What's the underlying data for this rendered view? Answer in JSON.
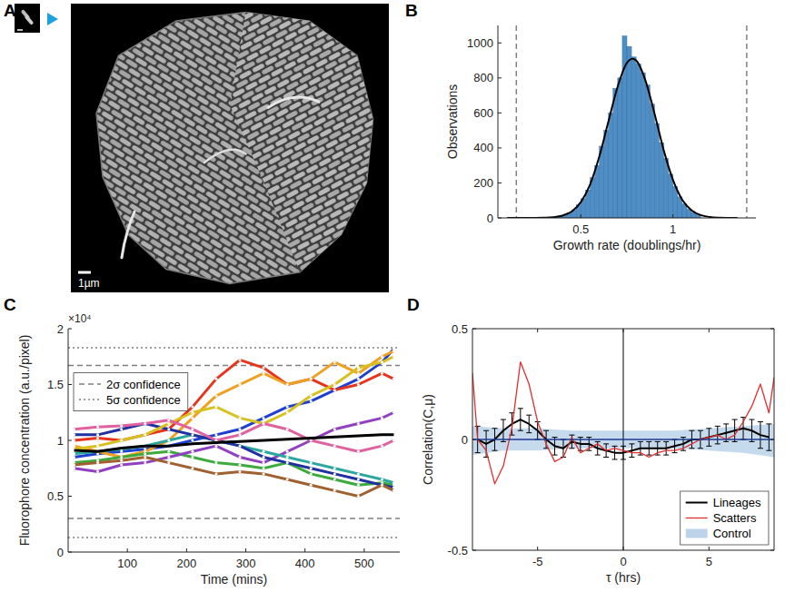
{
  "chart_data": [
    {
      "type": "image",
      "panel_label": "A",
      "scale_bar": "1µm"
    },
    {
      "type": "histogram",
      "panel_label": "B",
      "x_label": "Growth rate (doublings/hr)",
      "y_label": "Observations",
      "bins": [
        0.35,
        0.375,
        0.4,
        0.425,
        0.45,
        0.475,
        0.5,
        0.525,
        0.55,
        0.575,
        0.6,
        0.625,
        0.65,
        0.675,
        0.7,
        0.725,
        0.75,
        0.775,
        0.8,
        0.825,
        0.85,
        0.875,
        0.9,
        0.925,
        0.95,
        0.975,
        1,
        1.025,
        1.05,
        1.075,
        1.1,
        1.125,
        1.15
      ],
      "counts": [
        5,
        9,
        15,
        30,
        45,
        75,
        110,
        160,
        230,
        300,
        410,
        500,
        600,
        740,
        800,
        1040,
        980,
        920,
        880,
        830,
        760,
        650,
        540,
        430,
        340,
        250,
        180,
        120,
        80,
        50,
        30,
        18
      ],
      "color": "#4f8ec5",
      "fit": {
        "x": [
          0.1,
          0.15,
          0.2,
          0.25,
          0.3,
          0.35,
          0.4,
          0.45,
          0.5,
          0.55,
          0.6,
          0.65,
          0.7,
          0.75,
          0.8,
          0.85,
          0.9,
          0.95,
          1,
          1.05,
          1.1,
          1.15,
          1.2,
          1.25,
          1.3,
          1.35
        ],
        "values": [
          0,
          0,
          0,
          0,
          1,
          4,
          13,
          36,
          90,
          190,
          350,
          552,
          751,
          886,
          900,
          787,
          596,
          386,
          217,
          104,
          44,
          16,
          5,
          1,
          0,
          0
        ],
        "color": "#000000"
      },
      "reference_lines": {
        "x": [
          0.15,
          1.4
        ],
        "line_style": "dashed",
        "color": "#808080"
      },
      "xlim": [
        0.05,
        1.45
      ],
      "xticks": [
        0.5,
        1
      ],
      "ylim": [
        0,
        1100
      ],
      "yticks": [
        0,
        200,
        400,
        600,
        800,
        1000
      ]
    },
    {
      "type": "line",
      "panel_label": "C",
      "x_label": "Time (mins)",
      "y_label": "Fluorophore concentration (a.u./pixel)",
      "y_multiplier": "×10⁴",
      "xlim": [
        0,
        560
      ],
      "xticks": [
        100,
        200,
        300,
        400,
        500
      ],
      "ylim": [
        0,
        2
      ],
      "yticks": [
        0,
        0.5,
        1,
        1.5,
        2
      ],
      "x": [
        10,
        50,
        90,
        130,
        170,
        210,
        250,
        290,
        330,
        370,
        410,
        450,
        490,
        530,
        550
      ],
      "series": [
        {
          "color": "#1f3fd0",
          "marker": "circle",
          "values": [
            0.85,
            0.88,
            0.9,
            0.92,
            0.95,
            1.0,
            1.05,
            1.1,
            1.2,
            1.3,
            1.35,
            1.45,
            1.55,
            1.7,
            1.82
          ]
        },
        {
          "color": "#e8341c",
          "marker": "circle",
          "values": [
            1.0,
            1.02,
            1.0,
            1.05,
            1.1,
            1.3,
            1.55,
            1.72,
            1.65,
            1.5,
            1.55,
            1.45,
            1.5,
            1.6,
            1.55
          ]
        },
        {
          "color": "#f0a020",
          "marker": "circle",
          "values": [
            0.95,
            0.9,
            0.85,
            0.9,
            1.0,
            1.2,
            1.4,
            1.5,
            1.6,
            1.5,
            1.55,
            1.7,
            1.6,
            1.75,
            1.8
          ]
        },
        {
          "color": "#3caa3c",
          "marker": "circle",
          "values": [
            0.8,
            0.82,
            0.85,
            0.88,
            0.9,
            0.85,
            0.8,
            0.78,
            0.75,
            0.8,
            0.7,
            0.65,
            0.6,
            0.62,
            0.6
          ]
        },
        {
          "color": "#9040c0",
          "marker": "circle",
          "values": [
            0.75,
            0.72,
            0.78,
            0.8,
            0.85,
            0.9,
            0.95,
            0.85,
            0.8,
            0.9,
            1.0,
            1.1,
            1.15,
            1.2,
            1.25
          ]
        },
        {
          "color": "#2aa8a0",
          "marker": "circle",
          "values": [
            0.88,
            0.9,
            0.92,
            0.95,
            1.0,
            1.05,
            1.0,
            0.95,
            0.9,
            0.85,
            0.8,
            0.75,
            0.7,
            0.65,
            0.62
          ]
        },
        {
          "color": "#2030a0",
          "marker": "circle",
          "values": [
            1.05,
            1.05,
            1.1,
            1.15,
            1.1,
            1.05,
            1.0,
            0.95,
            0.85,
            0.8,
            0.75,
            0.7,
            0.65,
            0.6,
            0.58
          ]
        },
        {
          "color": "#d8c020",
          "marker": "circle",
          "values": [
            0.92,
            0.95,
            1.0,
            1.05,
            1.15,
            1.25,
            1.3,
            1.2,
            1.15,
            1.25,
            1.4,
            1.5,
            1.65,
            1.7,
            1.75
          ]
        },
        {
          "color": "#e060a0",
          "marker": "circle",
          "values": [
            1.1,
            1.12,
            1.13,
            1.15,
            1.18,
            1.1,
            1.0,
            1.05,
            1.15,
            1.1,
            1.0,
            0.95,
            0.9,
            0.95,
            1.0
          ]
        },
        {
          "color": "#a06030",
          "marker": "circle",
          "values": [
            0.78,
            0.8,
            0.82,
            0.85,
            0.8,
            0.75,
            0.7,
            0.72,
            0.7,
            0.65,
            0.6,
            0.55,
            0.5,
            0.6,
            0.55
          ]
        },
        {
          "color": "#000000",
          "values": [
            0.91,
            0.9,
            0.93,
            0.95,
            0.95,
            0.97,
            0.98,
            0.99,
            1.0,
            1.01,
            1.02,
            1.03,
            1.04,
            1.05,
            1.05
          ]
        }
      ],
      "reference_lines": [
        {
          "name": "2σ confidence",
          "values": [
            0.3,
            1.67
          ],
          "line_style": "dashed",
          "color": "#808080"
        },
        {
          "name": "5σ confidence",
          "values": [
            0.13,
            1.83
          ],
          "line_style": "dotted",
          "color": "#808080"
        }
      ],
      "legend": "upper left"
    },
    {
      "type": "line",
      "panel_label": "D",
      "x_label": "τ (hrs)",
      "y_label": "Correlation(C,μ)",
      "xlim": [
        -8.8,
        8.8
      ],
      "xticks": [
        -5,
        0,
        5
      ],
      "ylim": [
        -0.5,
        0.5
      ],
      "yticks": [
        -0.5,
        0,
        0.5
      ],
      "reference_lines": {
        "x": [
          0
        ],
        "color": "#000000"
      },
      "series": [
        {
          "name": "Lineages",
          "color": "#000000",
          "x": [
            -8.5,
            -8,
            -7.5,
            -7,
            -6.5,
            -6,
            -5.5,
            -5,
            -4.5,
            -4,
            -3.5,
            -3,
            -2.5,
            -2,
            -1.5,
            -1,
            -0.5,
            0,
            0.5,
            1,
            1.5,
            2,
            2.5,
            3,
            3.5,
            4,
            4.5,
            5,
            5.5,
            6,
            6.5,
            7,
            7.5,
            8,
            8.5
          ],
          "values": [
            0,
            -0.02,
            0,
            0.04,
            0.07,
            0.09,
            0.07,
            0.04,
            0,
            -0.03,
            -0.04,
            -0.01,
            -0.02,
            -0.02,
            -0.04,
            -0.05,
            -0.06,
            -0.06,
            -0.05,
            -0.04,
            -0.04,
            -0.04,
            -0.04,
            -0.03,
            -0.02,
            0,
            0,
            0.01,
            0.02,
            0.03,
            0.04,
            0.05,
            0.04,
            0.02,
            0.01
          ],
          "errors": [
            0.06,
            0.06,
            0.05,
            0.05,
            0.05,
            0.05,
            0.04,
            0.04,
            0.04,
            0.04,
            0.04,
            0.03,
            0.03,
            0.03,
            0.03,
            0.03,
            0.03,
            0.03,
            0.03,
            0.03,
            0.03,
            0.03,
            0.03,
            0.03,
            0.03,
            0.04,
            0.04,
            0.04,
            0.04,
            0.04,
            0.05,
            0.05,
            0.05,
            0.06,
            0.06
          ]
        },
        {
          "name": "Scatters",
          "color": "#e03030",
          "x": [
            -8.8,
            -8.5,
            -8,
            -7.5,
            -7,
            -6.5,
            -6,
            -5.5,
            -5,
            -4.5,
            -4,
            -3.5,
            -3,
            -2.5,
            -2,
            -1.5,
            -1,
            -0.5,
            0,
            0.5,
            1,
            1.5,
            2,
            2.5,
            3,
            3.5,
            4,
            4.5,
            5,
            5.5,
            6,
            6.5,
            7,
            7.5,
            8,
            8.5,
            8.8
          ],
          "values": [
            0.3,
            0,
            -0.05,
            -0.2,
            -0.12,
            0.05,
            0.35,
            0.25,
            0.08,
            -0.02,
            -0.1,
            -0.08,
            0.01,
            -0.06,
            -0.04,
            -0.02,
            -0.05,
            -0.04,
            -0.05,
            -0.06,
            -0.06,
            -0.08,
            -0.06,
            -0.05,
            -0.05,
            -0.04,
            -0.02,
            0,
            0.01,
            0.02,
            0,
            0.02,
            0.08,
            0.15,
            0.25,
            0.12,
            0.28
          ]
        },
        {
          "name": "Control",
          "type": "area",
          "color": "#bcd3ea",
          "x": [
            -8.8,
            -7,
            -5,
            -3,
            -1,
            1,
            3,
            5,
            7,
            8.8
          ],
          "values": [
            0,
            0,
            0,
            0,
            0,
            0,
            0,
            0,
            0,
            0
          ],
          "lower": [
            -0.07,
            -0.05,
            -0.05,
            -0.04,
            -0.04,
            -0.04,
            -0.04,
            -0.05,
            -0.06,
            -0.08
          ],
          "upper": [
            0.06,
            0.05,
            0.05,
            0.04,
            0.04,
            0.04,
            0.04,
            0.05,
            0.06,
            0.07
          ]
        }
      ],
      "legend": "lower right"
    }
  ]
}
